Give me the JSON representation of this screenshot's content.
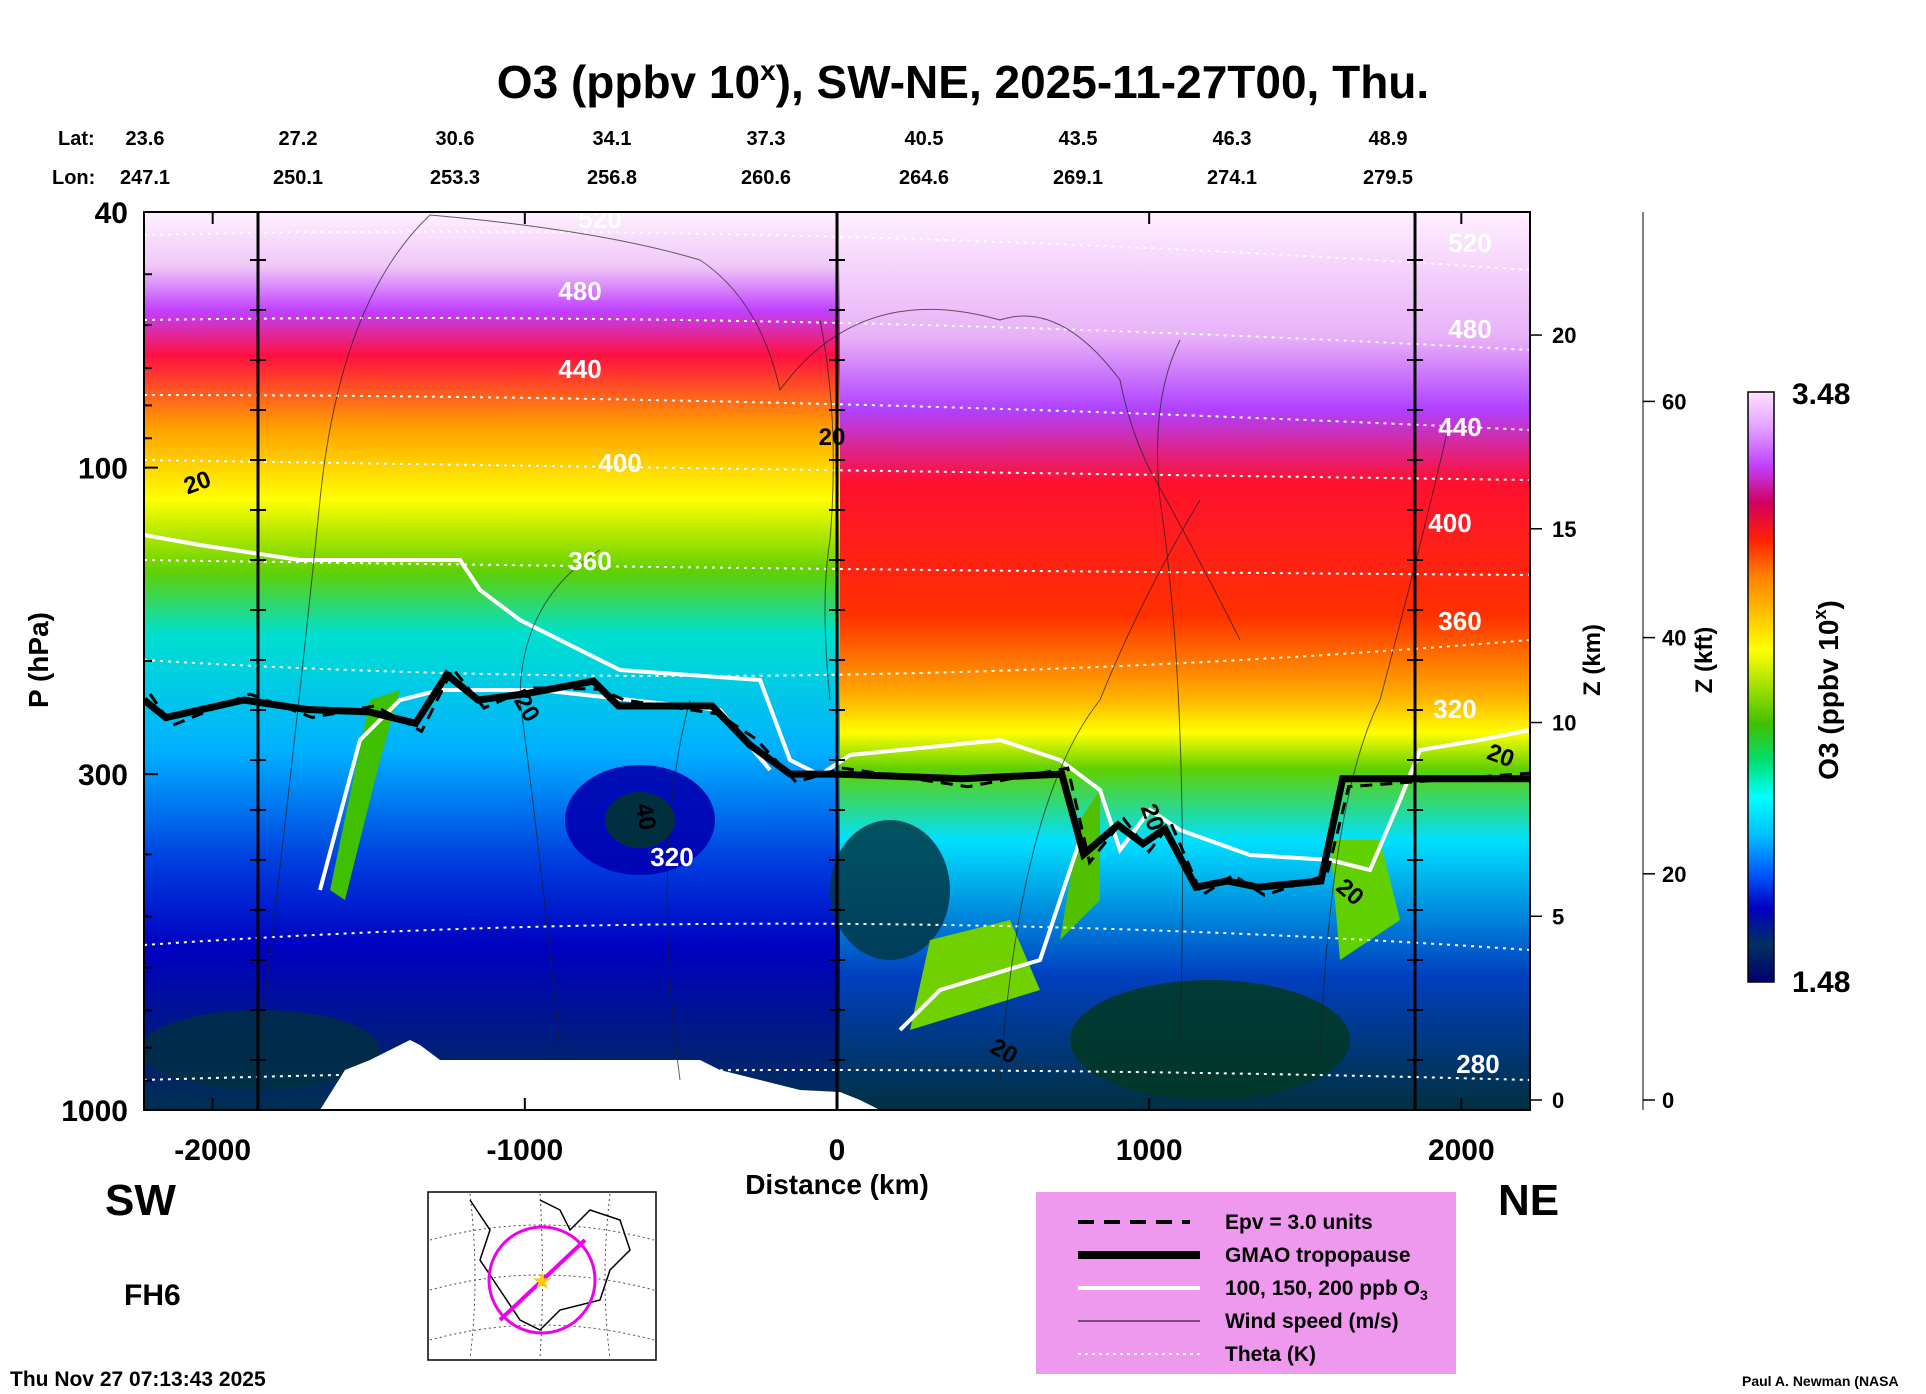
{
  "header": {
    "title": "O3 (ppbv 10",
    "title_sup": "x",
    "title_rest": "), SW-NE, 2025-11-27T00, Thu.",
    "lat_label": "Lat:",
    "lon_label": "Lon:",
    "lats": [
      "23.6",
      "27.2",
      "30.6",
      "34.1",
      "37.3",
      "40.5",
      "43.5",
      "46.3",
      "48.9"
    ],
    "lons": [
      "247.1",
      "250.1",
      "253.3",
      "256.8",
      "260.6",
      "264.6",
      "269.1",
      "274.1",
      "279.5"
    ]
  },
  "chart_data": {
    "type": "heatmap",
    "xlabel": "Distance (km)",
    "ylabel": "P (hPa)",
    "xlim": [
      -2220,
      2220
    ],
    "ylim": [
      1000,
      40
    ],
    "y_scale": "log",
    "xticks": [
      -2000,
      -1000,
      0,
      1000,
      2000
    ],
    "yticks": [
      40,
      100,
      300,
      1000
    ],
    "z_km_label": "Z (km)",
    "z_km_ticks": [
      0,
      5,
      10,
      15,
      20
    ],
    "z_kft_label": "Z (kft)",
    "z_kft_ticks": [
      0,
      20,
      40,
      60
    ],
    "colorbar": {
      "label": "O3 (ppbv 10",
      "label_sup": "x",
      "label_end": ")",
      "max": "3.48",
      "min": "1.48",
      "colors": [
        "#000070",
        "#003060",
        "#0000c0",
        "#0060ff",
        "#00c0ff",
        "#00ffff",
        "#00e070",
        "#40c000",
        "#a0e000",
        "#ffff00",
        "#ffc000",
        "#ff8000",
        "#ff2000",
        "#d00060",
        "#c040ff",
        "#e0a0ff",
        "#ffe0ff"
      ]
    },
    "theta_labels": [
      "520",
      "480",
      "440",
      "400",
      "360",
      "320",
      "280"
    ],
    "wind_labels": [
      "20",
      "40"
    ],
    "tropopause_km": [
      [
        -2220,
        230
      ],
      [
        -2150,
        245
      ],
      [
        -1900,
        230
      ],
      [
        -1700,
        238
      ],
      [
        -1500,
        240
      ],
      [
        -1350,
        250
      ],
      [
        -1250,
        210
      ],
      [
        -1150,
        230
      ],
      [
        -1000,
        225
      ],
      [
        -780,
        215
      ],
      [
        -700,
        235
      ],
      [
        -400,
        235
      ],
      [
        -280,
        270
      ],
      [
        -150,
        300
      ],
      [
        0,
        300
      ],
      [
        400,
        305
      ],
      [
        720,
        300
      ],
      [
        790,
        400
      ],
      [
        900,
        360
      ],
      [
        980,
        385
      ],
      [
        1050,
        365
      ],
      [
        1150,
        450
      ],
      [
        1250,
        440
      ],
      [
        1350,
        450
      ],
      [
        1550,
        440
      ],
      [
        1620,
        305
      ],
      [
        2220,
        305
      ]
    ],
    "sections": {
      "sw": "SW",
      "ne": "NE"
    }
  },
  "legend": {
    "items": [
      {
        "label": "Epv = 3.0 units",
        "style": "dashed"
      },
      {
        "label": "GMAO tropopause",
        "style": "thick"
      },
      {
        "label": "100, 150, 200 ppb O",
        "sub": "3",
        "style": "white"
      },
      {
        "label": "Wind speed (m/s)",
        "style": "thin"
      },
      {
        "label": "Theta (K)",
        "style": "dotted"
      }
    ],
    "bg": "#ee99ee"
  },
  "footer": {
    "forecast_hour": "FH6",
    "timestamp": "Thu Nov 27 07:13:43 2025",
    "credit": "Paul A. Newman (NASA"
  }
}
